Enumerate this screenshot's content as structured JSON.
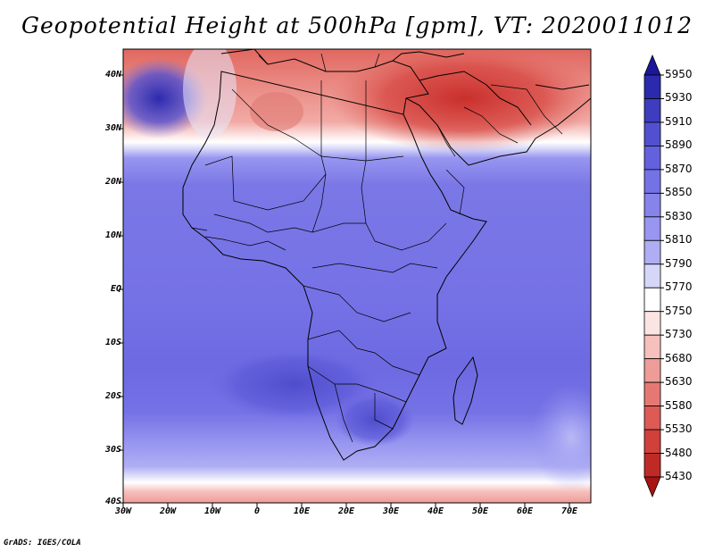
{
  "title": "Geopotential Height at 500hPa [gpm], VT: 2020011012",
  "credit": "GrADS: IGES/COLA",
  "map": {
    "projection": "latlon",
    "lon_range": [
      -30,
      75
    ],
    "lat_range": [
      -40,
      45
    ],
    "variable": "geopotential height",
    "level": "500hPa",
    "units": "gpm",
    "valid_time": "2020011012"
  },
  "lat_labels": [
    "40N",
    "30N",
    "20N",
    "10N",
    "EQ",
    "10S",
    "20S",
    "30S",
    "40S"
  ],
  "lon_labels": [
    "30W",
    "20W",
    "10W",
    "0",
    "10E",
    "20E",
    "30E",
    "40E",
    "50E",
    "60E",
    "70E"
  ],
  "colorbar": {
    "levels": [
      "5950",
      "5930",
      "5910",
      "5890",
      "5870",
      "5850",
      "5830",
      "5810",
      "5790",
      "5770",
      "5750",
      "5730",
      "5680",
      "5630",
      "5580",
      "5530",
      "5480",
      "5430"
    ],
    "colors_top_to_bottom": [
      "#1b169b",
      "#2b2aae",
      "#3e3dbf",
      "#5250d0",
      "#6461de",
      "#7572e6",
      "#8683eb",
      "#9896f0",
      "#afaef4",
      "#d6d6f9",
      "#ffffff",
      "#fbe4e2",
      "#f6c0bc",
      "#ee9c97",
      "#e67873",
      "#de5a55",
      "#d2403c",
      "#c02a26",
      "#a81412"
    ]
  }
}
